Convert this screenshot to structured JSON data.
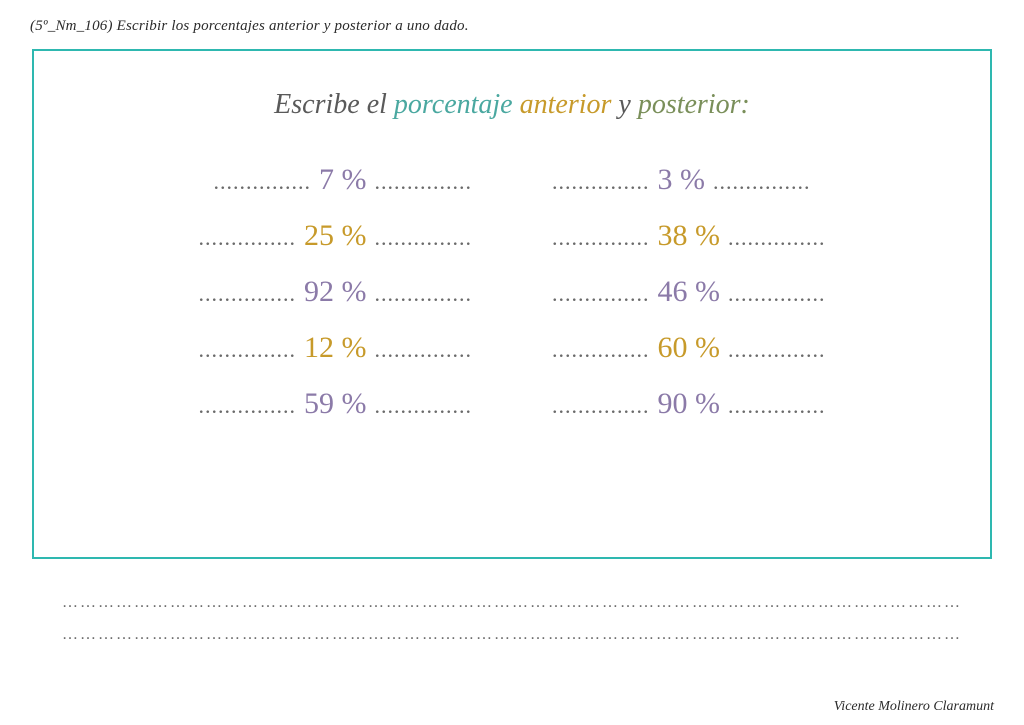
{
  "header": "(5º_Nm_106) Escribir los porcentajes anterior y posterior a uno dado.",
  "title": {
    "w1": "Escribe el ",
    "w2": "porcentaje ",
    "w3": "anterior ",
    "w4": "y ",
    "w5": "posterior:"
  },
  "dots": "...............",
  "rows": [
    {
      "left": {
        "value": "7 %",
        "colorClass": "c-purple"
      },
      "right": {
        "value": "3 %",
        "colorClass": "c-purple"
      }
    },
    {
      "left": {
        "value": "25 %",
        "colorClass": "c-gold"
      },
      "right": {
        "value": "38 %",
        "colorClass": "c-gold"
      }
    },
    {
      "left": {
        "value": "92 %",
        "colorClass": "c-purple"
      },
      "right": {
        "value": "46 %",
        "colorClass": "c-purple"
      }
    },
    {
      "left": {
        "value": "12 %",
        "colorClass": "c-gold"
      },
      "right": {
        "value": "60 %",
        "colorClass": "c-gold"
      }
    },
    {
      "left": {
        "value": "59 %",
        "colorClass": "c-purple"
      },
      "right": {
        "value": "90 %",
        "colorClass": "c-purple"
      }
    }
  ],
  "answerLine": "…………………………………………………………………………………………………………………………………………",
  "footer": "Vicente Molinero Claramunt",
  "colors": {
    "border": "#2eb8b0",
    "purple": "#8b7aa8",
    "gold": "#c79a2a",
    "titleTeal": "#4aa8a0",
    "titleGreen": "#7a8f5a",
    "textGray": "#5a5a5a"
  }
}
